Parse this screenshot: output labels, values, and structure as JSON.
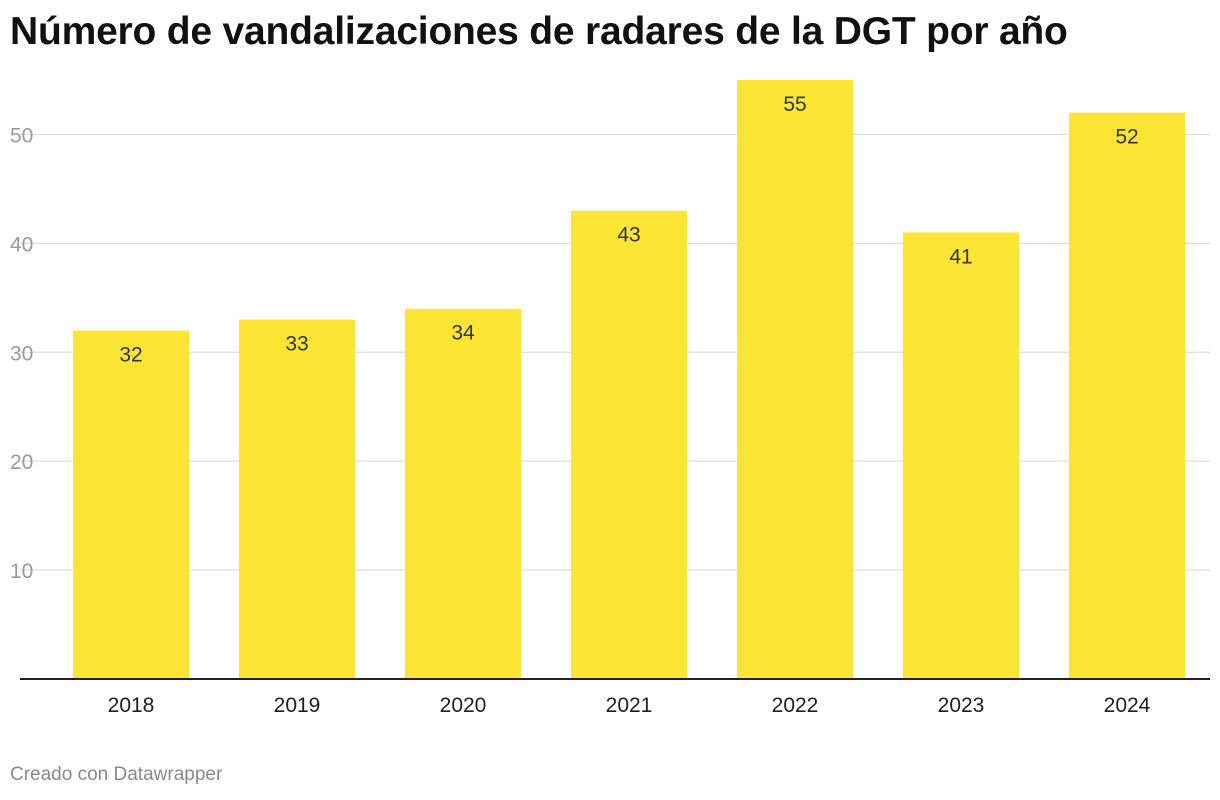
{
  "title": "Número de vandalizaciones de radares de la DGT por año",
  "credit": "Creado con Datawrapper",
  "colors": {
    "bar": "#fde535",
    "grid": "#dedede",
    "axis": "#222222"
  },
  "chart_data": {
    "type": "bar",
    "title": "Número de vandalizaciones de radares de la DGT por año",
    "xlabel": "",
    "ylabel": "",
    "categories": [
      "2018",
      "2019",
      "2020",
      "2021",
      "2022",
      "2023",
      "2024"
    ],
    "values": [
      32,
      33,
      34,
      43,
      55,
      41,
      52
    ],
    "value_labels": [
      "32",
      "33",
      "34",
      "43",
      "55",
      "41",
      "52"
    ],
    "yticks": [
      10,
      20,
      30,
      40,
      50
    ],
    "ytick_labels": [
      "10",
      "20",
      "30",
      "40",
      "50"
    ],
    "ylim": [
      0,
      55
    ],
    "grid": true,
    "legend": "none"
  }
}
